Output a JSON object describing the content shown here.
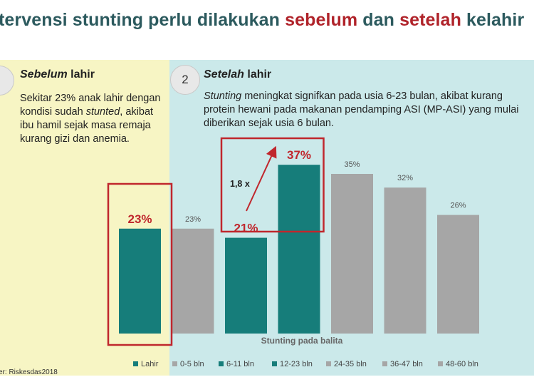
{
  "header": {
    "title_part1": "tervensi stunting perlu dilakukan ",
    "title_hl1": "sebelum",
    "title_part2": " dan ",
    "title_hl2": "setelah",
    "title_part3": " kelahir"
  },
  "left_panel": {
    "heading_italic": "Sebelum",
    "heading_rest": " lahir",
    "text_1": "Sekitar 23% anak lahir dengan kondisi sudah ",
    "text_italic": "stunted",
    "text_2": ", akibat ibu hamil sejak masa remaja kurang gizi dan anemia."
  },
  "right_panel": {
    "badge": "2",
    "heading_italic": "Setelah",
    "heading_rest": " lahir",
    "text_italic": "Stunting",
    "text_rest": " meningkat signifkan pada usia 6-23 bulan, akibat kurang protein hewani pada makanan pendamping ASI  (MP-ASI) yang mulai diberikan sejak usia 6 bulan."
  },
  "colors": {
    "teal": "#167d7a",
    "gray": "#a6a6a6",
    "red": "#c0272d",
    "yellow_bg": "#f7f5c4",
    "blue_bg": "#cbe9ea"
  },
  "chart_data": {
    "type": "bar",
    "xlabel": "Stunting pada balita",
    "categories": [
      "Lahir",
      "0-5 bln",
      "6-11 bln",
      "12-23 bln",
      "24-35 bln",
      "36-47 bln",
      "48-60 bln"
    ],
    "values": [
      23,
      23,
      21,
      37,
      35,
      32,
      26
    ],
    "labels": [
      "23%",
      "23%",
      "21%",
      "37%",
      "35%",
      "32%",
      "26%"
    ],
    "highlight": [
      true,
      false,
      true,
      true,
      false,
      false,
      false
    ],
    "bar_colors": [
      "#167d7a",
      "#a6a6a6",
      "#167d7a",
      "#167d7a",
      "#a6a6a6",
      "#a6a6a6",
      "#a6a6a6"
    ],
    "ylim": [
      0,
      40
    ],
    "legend_position": "bottom",
    "annotation": "1,8 x"
  },
  "footer": {
    "source": "er: Riskesdas2018"
  }
}
